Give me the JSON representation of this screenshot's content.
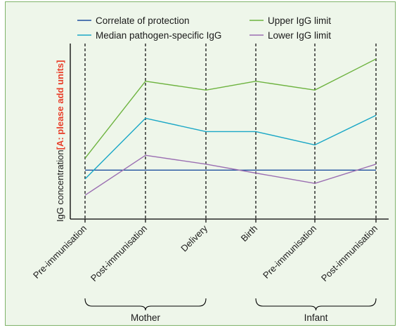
{
  "chart_data": {
    "type": "line",
    "categories": [
      "Pre-immunisation",
      "Post-immunisation",
      "Delivery",
      "Birth",
      "Pre-immunisation",
      "Post-immunisation"
    ],
    "groups": [
      {
        "label": "Mother",
        "from": 0,
        "to": 2
      },
      {
        "label": "Infant",
        "from": 3,
        "to": 5
      }
    ],
    "ylabel": "IgG concentration",
    "ylabel_note": "[A: please add units]",
    "ylim": [
      0,
      100
    ],
    "yticks_shown": false,
    "series": [
      {
        "name": "Correlate of protection",
        "color": "#1f4f9e",
        "values": [
          25,
          25,
          25,
          25,
          25,
          25
        ]
      },
      {
        "name": "Median pathogen-specific IgG",
        "color": "#1aa7c6",
        "values": [
          19,
          60,
          51,
          51,
          42,
          62
        ]
      },
      {
        "name": "Upper IgG limit",
        "color": "#6db33f",
        "values": [
          33,
          85,
          79,
          85,
          79,
          100
        ]
      },
      {
        "name": "Lower IgG limit",
        "color": "#9b6fb2",
        "values": [
          8,
          35,
          29,
          23,
          16,
          29
        ]
      }
    ],
    "legend_position": "top"
  }
}
